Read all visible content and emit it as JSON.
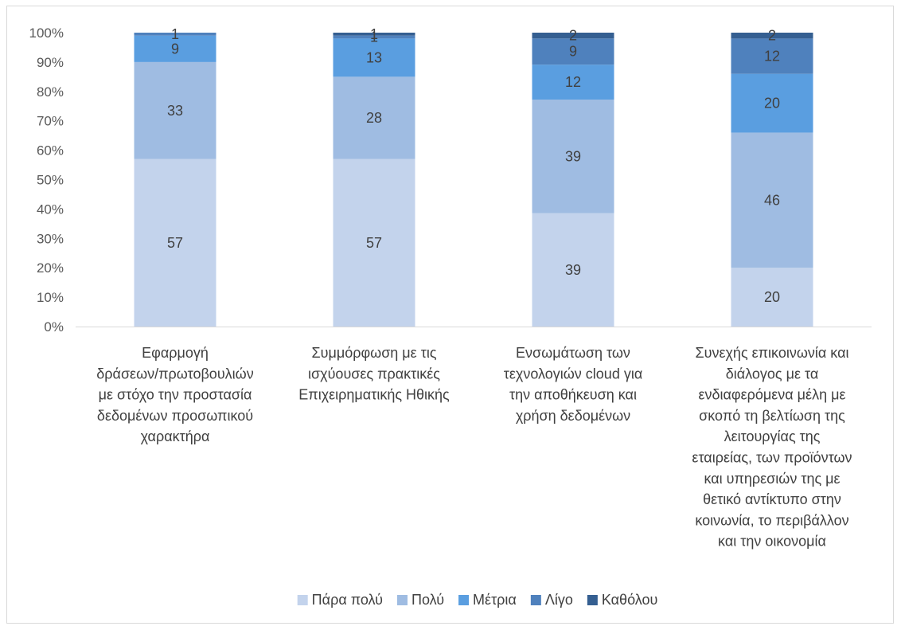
{
  "chart_data": {
    "type": "bar",
    "stacked": true,
    "percent": true,
    "categories": [
      [
        "Εφαρμογή",
        "δράσεων/πρωτοβουλιών",
        "με στόχο την προστασία",
        "δεδομένων προσωπικού",
        "χαρακτήρα"
      ],
      [
        "Συμμόρφωση με τις",
        "ισχύουσες πρακτικές",
        "Επιχειρηματικής Ηθικής"
      ],
      [
        "Ενσωμάτωση των",
        "τεχνολογιών cloud για",
        "την αποθήκευση και",
        "χρήση δεδομένων"
      ],
      [
        "Συνεχής επικοινωνία και",
        "διάλογος με τα",
        "ενδιαφερόμενα μέλη με",
        "σκοπό τη βελτίωση της",
        "λειτουργίας της",
        "εταιρείας, των προϊόντων",
        "και υπηρεσιών της με",
        "θετικό αντίκτυπο στην",
        "κοινωνία, το περιβάλλον",
        "και την οικονομία"
      ]
    ],
    "series": [
      {
        "name": "Πάρα πολύ",
        "color": "#c3d3ec",
        "values": [
          57,
          57,
          39,
          20
        ]
      },
      {
        "name": "Πολύ",
        "color": "#9fbce2",
        "values": [
          33,
          28,
          39,
          46
        ]
      },
      {
        "name": "Μέτρια",
        "color": "#5a9ee0",
        "values": [
          9,
          13,
          12,
          20
        ]
      },
      {
        "name": "Λίγο",
        "color": "#4f81bd",
        "values": [
          1,
          1,
          9,
          12
        ]
      },
      {
        "name": "Καθόλου",
        "color": "#355f91",
        "values": [
          0,
          1,
          2,
          2
        ]
      }
    ],
    "y_ticks": [
      "0%",
      "10%",
      "20%",
      "30%",
      "40%",
      "50%",
      "60%",
      "70%",
      "80%",
      "90%",
      "100%"
    ],
    "ylim": [
      0,
      100
    ],
    "legend_position": "bottom",
    "grid": false
  }
}
